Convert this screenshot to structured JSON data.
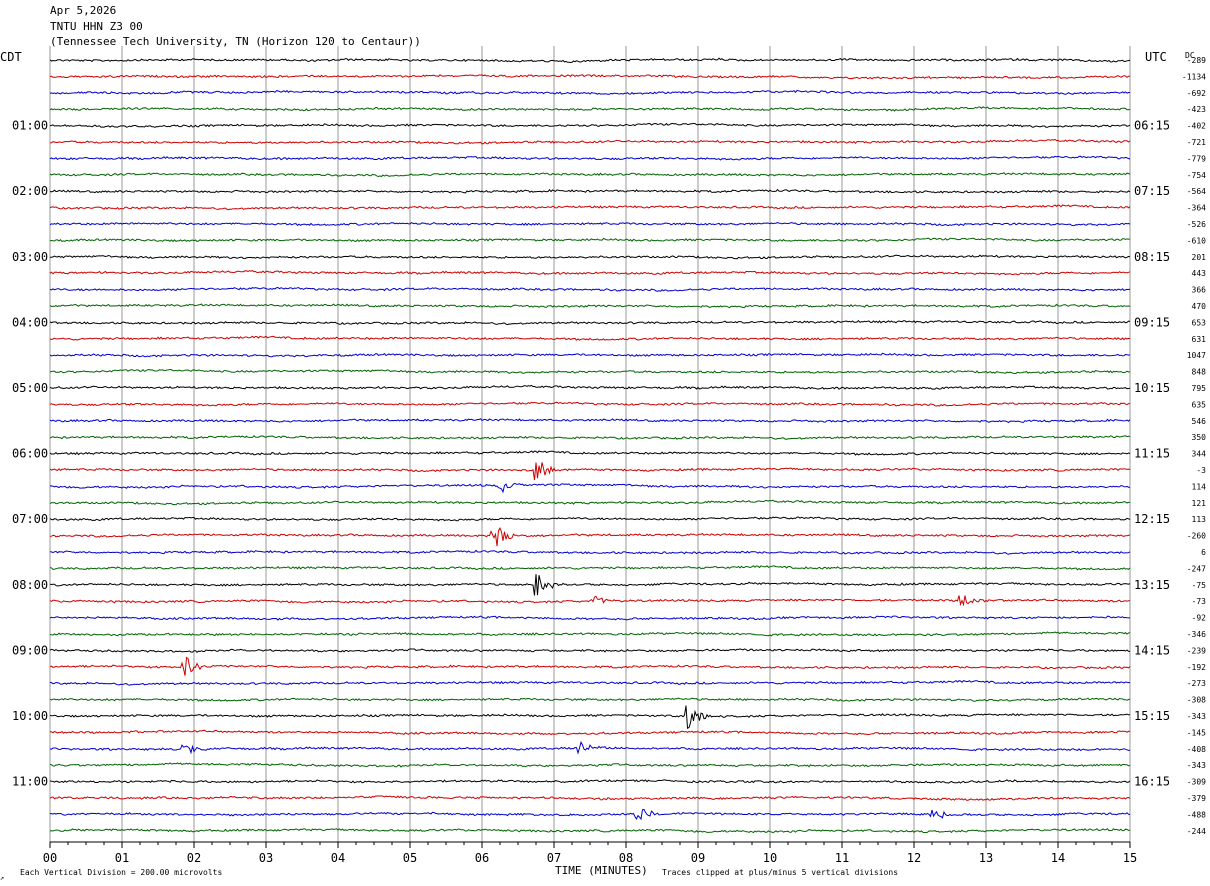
{
  "header": {
    "date": "Apr 5,2026",
    "station": "TNTU HHN Z3 00",
    "location": "(Tennessee Tech University, TN (Horizon 120 to Centaur))"
  },
  "left_zone": "CDT",
  "right_zone": "UTC",
  "dc_label": "DC",
  "footer": {
    "scale_note": "Each Vertical Division =  200.00 microvolts",
    "xlabel": "TIME (MINUTES)",
    "clip_note": "Traces clipped at plus/minus 5 vertical divisions",
    "corner_mark": "↗"
  },
  "colors": {
    "black": "#000000",
    "red": "#cc0000",
    "blue": "#0000cc",
    "green": "#006400",
    "grid": "#999999"
  },
  "chart_data": {
    "type": "line",
    "title": "TNTU HHN Z3 00",
    "xlabel": "TIME (MINUTES)",
    "xlim": [
      0,
      15
    ],
    "x_ticks": [
      "00",
      "01",
      "02",
      "03",
      "04",
      "05",
      "06",
      "07",
      "08",
      "09",
      "10",
      "11",
      "12",
      "13",
      "14",
      "15"
    ],
    "trace_interval_minutes": 15,
    "trace_color_cycle": [
      "black",
      "red",
      "blue",
      "green"
    ],
    "left_hour_labels": [
      "01:00",
      "02:00",
      "03:00",
      "04:00",
      "05:00",
      "06:00",
      "07:00",
      "08:00",
      "09:00",
      "10:00",
      "11:00"
    ],
    "right_hour_labels": [
      "06:15",
      "07:15",
      "08:15",
      "09:15",
      "10:15",
      "11:15",
      "12:15",
      "13:15",
      "14:15",
      "15:15",
      "16:15"
    ],
    "dc_offsets": [
      -289,
      -1134,
      -692,
      -423,
      -402,
      -721,
      -779,
      -754,
      -564,
      -364,
      -526,
      -610,
      201,
      443,
      366,
      470,
      653,
      631,
      1047,
      848,
      795,
      635,
      546,
      350,
      344,
      -3,
      114,
      121,
      113,
      -260,
      6,
      -247,
      -75,
      -73,
      -92,
      -346,
      -239,
      -192,
      -273,
      -308,
      -343,
      -145,
      -408,
      -343,
      -309,
      -379,
      -488,
      -244
    ],
    "events": [
      {
        "trace": 25,
        "minute": 6.8,
        "amplitude": 1.2
      },
      {
        "trace": 26,
        "minute": 6.3,
        "amplitude": 0.8
      },
      {
        "trace": 29,
        "minute": 6.2,
        "amplitude": 1.4
      },
      {
        "trace": 32,
        "minute": 6.8,
        "amplitude": 1.5
      },
      {
        "trace": 33,
        "minute": 7.6,
        "amplitude": 0.5
      },
      {
        "trace": 33,
        "minute": 12.7,
        "amplitude": 0.6
      },
      {
        "trace": 37,
        "minute": 1.9,
        "amplitude": 1.2
      },
      {
        "trace": 40,
        "minute": 8.9,
        "amplitude": 1.5
      },
      {
        "trace": 42,
        "minute": 1.9,
        "amplitude": 0.6
      },
      {
        "trace": 42,
        "minute": 7.4,
        "amplitude": 0.6
      },
      {
        "trace": 46,
        "minute": 8.2,
        "amplitude": 0.9
      },
      {
        "trace": 46,
        "minute": 12.3,
        "amplitude": 0.6
      }
    ]
  }
}
